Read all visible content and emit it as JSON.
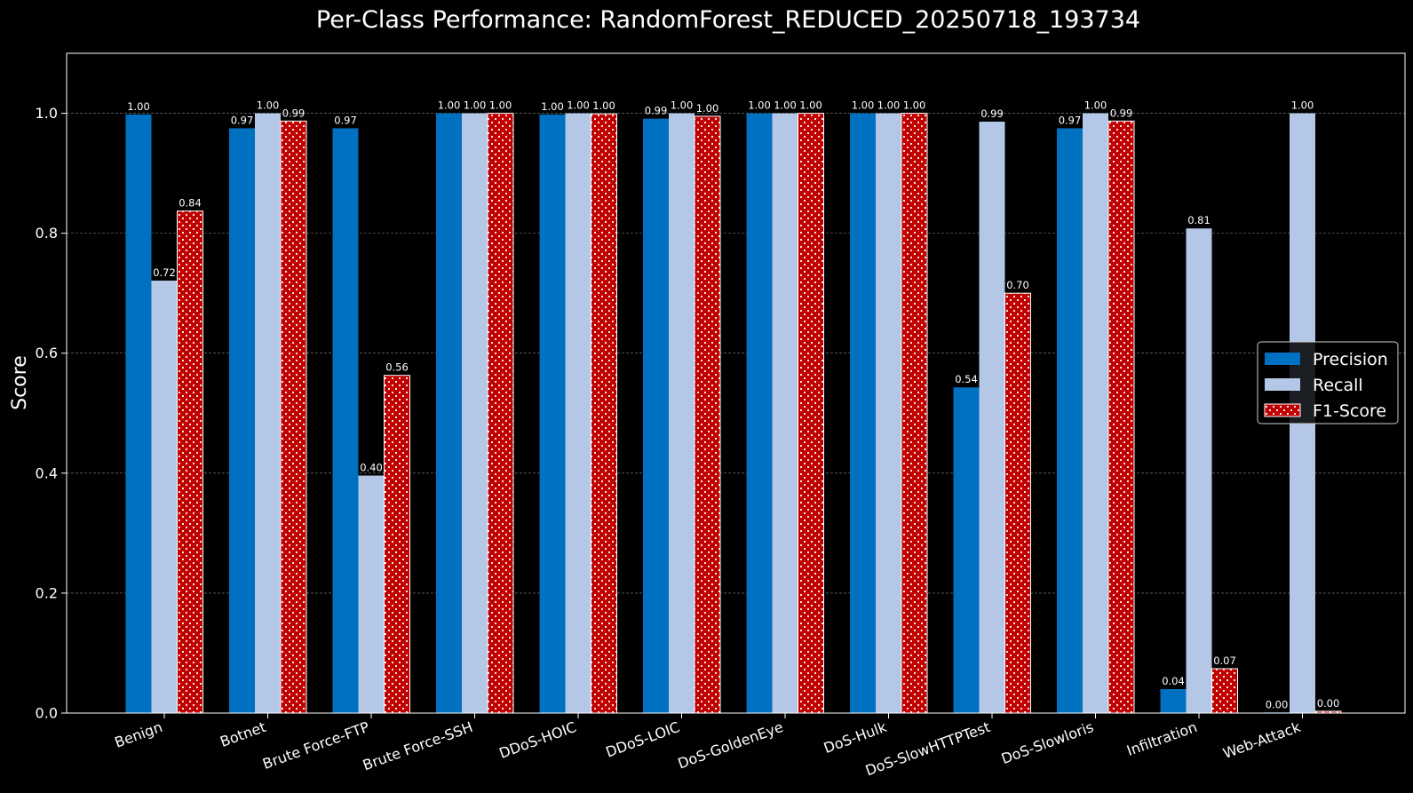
{
  "chart_data": {
    "type": "bar",
    "title": "Per-Class Performance: RandomForest_REDUCED_20250718_193734",
    "xlabel": "",
    "ylabel": "Score",
    "ylim": [
      0,
      1.1
    ],
    "yticks": [
      "0.0",
      "0.2",
      "0.4",
      "0.6",
      "0.8",
      "1.0"
    ],
    "grid": "horizontal dashed",
    "legend_position": "center-right",
    "categories": [
      "Benign",
      "Botnet",
      "Brute Force-FTP",
      "Brute Force-SSH",
      "DDoS-HOIC",
      "DDoS-LOIC",
      "DoS-GoldenEye",
      "DoS-Hulk",
      "DoS-SlowHTTPTest",
      "DoS-Slowloris",
      "Infiltration",
      "Web-Attack"
    ],
    "series": [
      {
        "name": "Precision",
        "color": "#0070c0",
        "values": [
          0.998,
          0.975,
          0.975,
          1.0,
          0.998,
          0.991,
          1.0,
          1.0,
          0.543,
          0.975,
          0.04,
          0.001
        ],
        "labels": [
          "1.00",
          "0.97",
          "0.97",
          "1.00",
          "1.00",
          "0.99",
          "1.00",
          "1.00",
          "0.54",
          "0.97",
          "0.04",
          "0.00"
        ]
      },
      {
        "name": "Recall",
        "color": "#b4c7e7",
        "values": [
          0.721,
          1.0,
          0.396,
          1.0,
          1.0,
          1.0,
          1.0,
          1.0,
          0.986,
          1.0,
          0.808,
          1.0
        ],
        "labels": [
          "0.72",
          "1.00",
          "0.40",
          "1.00",
          "1.00",
          "1.00",
          "1.00",
          "1.00",
          "0.99",
          "1.00",
          "0.81",
          "1.00"
        ]
      },
      {
        "name": "F1-Score",
        "color": "#c00000",
        "hatch": "dots",
        "values": [
          0.837,
          0.987,
          0.563,
          1.0,
          0.999,
          0.995,
          1.0,
          1.0,
          0.7,
          0.987,
          0.074,
          0.003
        ],
        "labels": [
          "0.84",
          "0.99",
          "0.56",
          "1.00",
          "1.00",
          "1.00",
          "1.00",
          "1.00",
          "0.70",
          "0.99",
          "0.07",
          "0.00"
        ]
      }
    ]
  }
}
